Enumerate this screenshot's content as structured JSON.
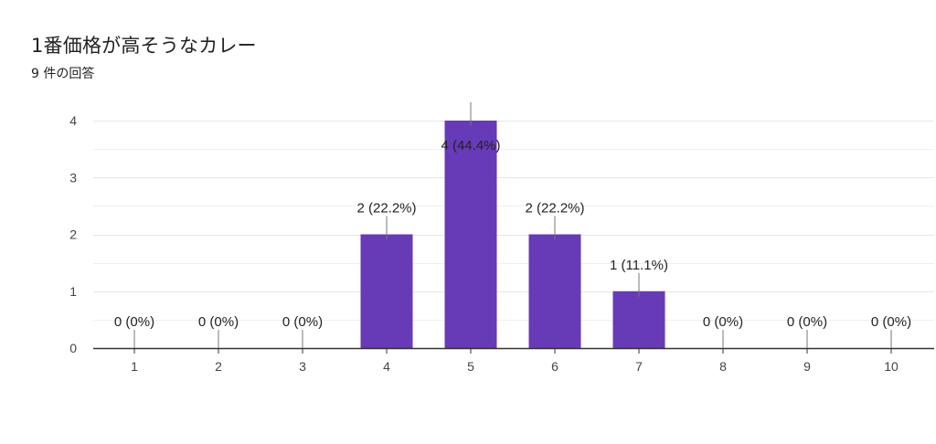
{
  "header": {
    "title": "1番価格が高そうなカレー",
    "subtitle": "9 件の回答"
  },
  "colors": {
    "bar": "#673ab7",
    "grid": "#e6e6e6",
    "axis": "#333333",
    "leader": "#777777"
  },
  "chart_data": {
    "type": "bar",
    "categories": [
      "1",
      "2",
      "3",
      "4",
      "5",
      "6",
      "7",
      "8",
      "9",
      "10"
    ],
    "values": [
      0,
      0,
      0,
      2,
      4,
      2,
      1,
      0,
      0,
      0
    ],
    "data_labels": [
      "0 (0%)",
      "0 (0%)",
      "0 (0%)",
      "2 (22.2%)",
      "4 (44.4%)",
      "2 (22.2%)",
      "1 (11.1%)",
      "0 (0%)",
      "0 (0%)",
      "0 (0%)"
    ],
    "yticks": [
      "0",
      "1",
      "2",
      "3",
      "4"
    ],
    "ylim": [
      0,
      4
    ],
    "grid": true,
    "legend": "none"
  }
}
